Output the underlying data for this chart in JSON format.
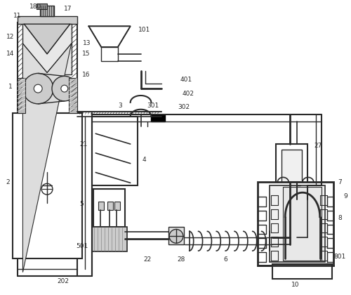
{
  "bg_color": "#ffffff",
  "line_color": "#2a2a2a",
  "fig_width": 5.0,
  "fig_height": 4.2,
  "dpi": 100
}
